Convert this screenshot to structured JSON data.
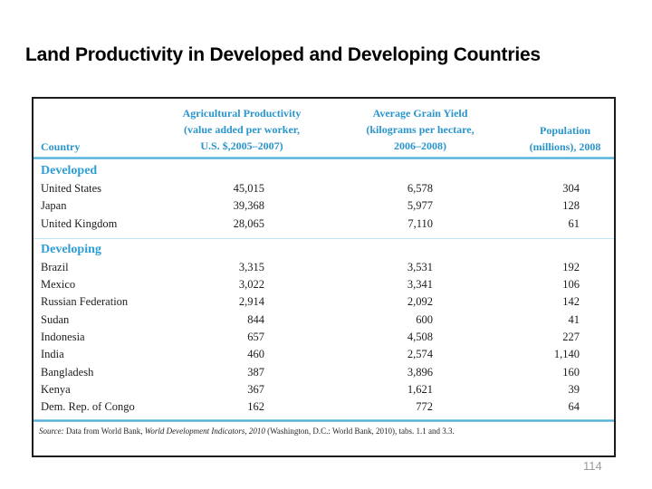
{
  "page": {
    "title": "Land Productivity in Developed and Developing Countries",
    "page_number": "114"
  },
  "colors": {
    "accent_blue_text": "#2a95cc",
    "section_label_blue": "#2d9fd6",
    "rule_blue": "#45a9d6",
    "light_divider_blue": "#c3e5f3",
    "body_text": "#1d1c1a",
    "page_number_gray": "#9a9a9a",
    "box_border": "#1c1c1c"
  },
  "table": {
    "headers": {
      "country": "Country",
      "ag_line1": "Agricultural Productivity",
      "ag_line2": "(value added per worker,",
      "ag_line3": "U.S. $,2005–2007)",
      "grain_line1": "Average Grain Yield",
      "grain_line2": "(kilograms per hectare,",
      "grain_line3": "2006–2008)",
      "pop_line1": "Population",
      "pop_line2": "(millions), 2008"
    },
    "sections": [
      {
        "label": "Developed",
        "rows": [
          {
            "country": "United States",
            "ag": "45,015",
            "grain": "6,578",
            "pop": "304"
          },
          {
            "country": "Japan",
            "ag": "39,368",
            "grain": "5,977",
            "pop": "128"
          },
          {
            "country": "United Kingdom",
            "ag": "28,065",
            "grain": "7,110",
            "pop": "61"
          }
        ]
      },
      {
        "label": "Developing",
        "rows": [
          {
            "country": "Brazil",
            "ag": "3,315",
            "grain": "3,531",
            "pop": "192"
          },
          {
            "country": "Mexico",
            "ag": "3,022",
            "grain": "3,341",
            "pop": "106"
          },
          {
            "country": "Russian Federation",
            "ag": "2,914",
            "grain": "2,092",
            "pop": "142"
          },
          {
            "country": "Sudan",
            "ag": "844",
            "grain": "600",
            "pop": "41"
          },
          {
            "country": "Indonesia",
            "ag": "657",
            "grain": "4,508",
            "pop": "227"
          },
          {
            "country": "India",
            "ag": "460",
            "grain": "2,574",
            "pop": "1,140"
          },
          {
            "country": "Bangladesh",
            "ag": "387",
            "grain": "3,896",
            "pop": "160"
          },
          {
            "country": "Kenya",
            "ag": "367",
            "grain": "1,621",
            "pop": "39"
          },
          {
            "country": "Dem. Rep. of Congo",
            "ag": "162",
            "grain": "772",
            "pop": "64"
          }
        ]
      }
    ],
    "source": {
      "prefix": "Source:",
      "text1": " Data from World Bank, ",
      "italic": "World Development Indicators, 2010",
      "text2": " (Washington, D.C.: World Bank, 2010), tabs. 1.1 and 3.3."
    }
  }
}
